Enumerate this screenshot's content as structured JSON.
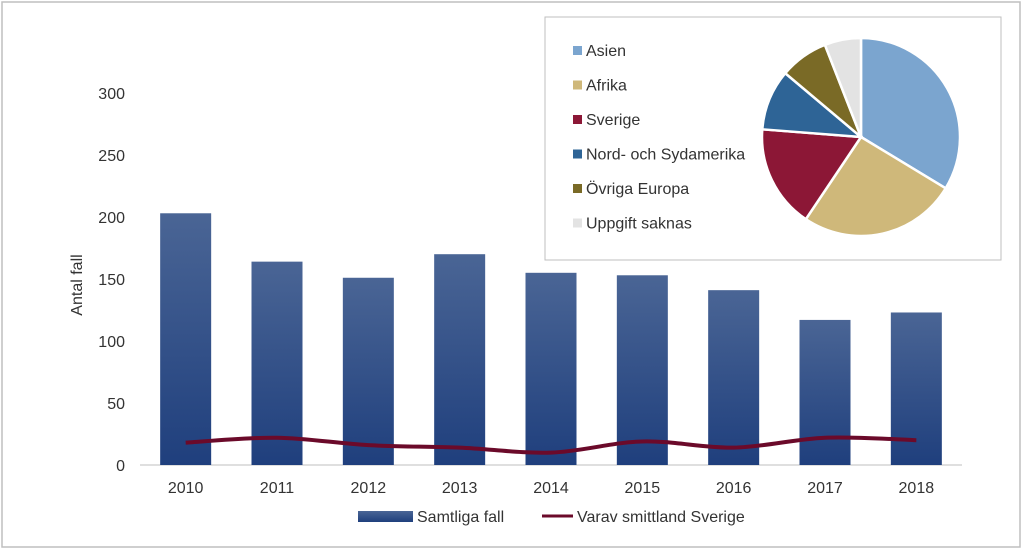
{
  "chart_data": [
    {
      "type": "bar",
      "categories": [
        "2010",
        "2011",
        "2012",
        "2013",
        "2014",
        "2015",
        "2016",
        "2017",
        "2018"
      ],
      "series": [
        {
          "name": "Samtliga fall",
          "type": "bar",
          "values": [
            203,
            164,
            151,
            170,
            155,
            153,
            141,
            117,
            123
          ],
          "color": "#2f4f86"
        },
        {
          "name": "Varav smittland Sverige",
          "type": "line",
          "values": [
            18,
            22,
            16,
            14,
            10,
            19,
            14,
            22,
            20
          ],
          "color": "#6b0a2a"
        }
      ],
      "ylabel": "Antal fall",
      "ylim": [
        0,
        300
      ],
      "yticks": [
        "0",
        "50",
        "100",
        "150",
        "200",
        "250",
        "300"
      ],
      "grid": false,
      "legend": "bottom"
    },
    {
      "type": "pie",
      "labels": [
        "Asien",
        "Afrika",
        "Sverige",
        "Nord- och Sydamerika",
        "Övriga Europa",
        "Uppgift saknas"
      ],
      "values": [
        34,
        26,
        17,
        10,
        8,
        6
      ],
      "colors": [
        "#7ba5cf",
        "#cfb87a",
        "#8c1736",
        "#2e6496",
        "#7a6a26",
        "#e3e3e3"
      ],
      "legend": "left"
    }
  ]
}
